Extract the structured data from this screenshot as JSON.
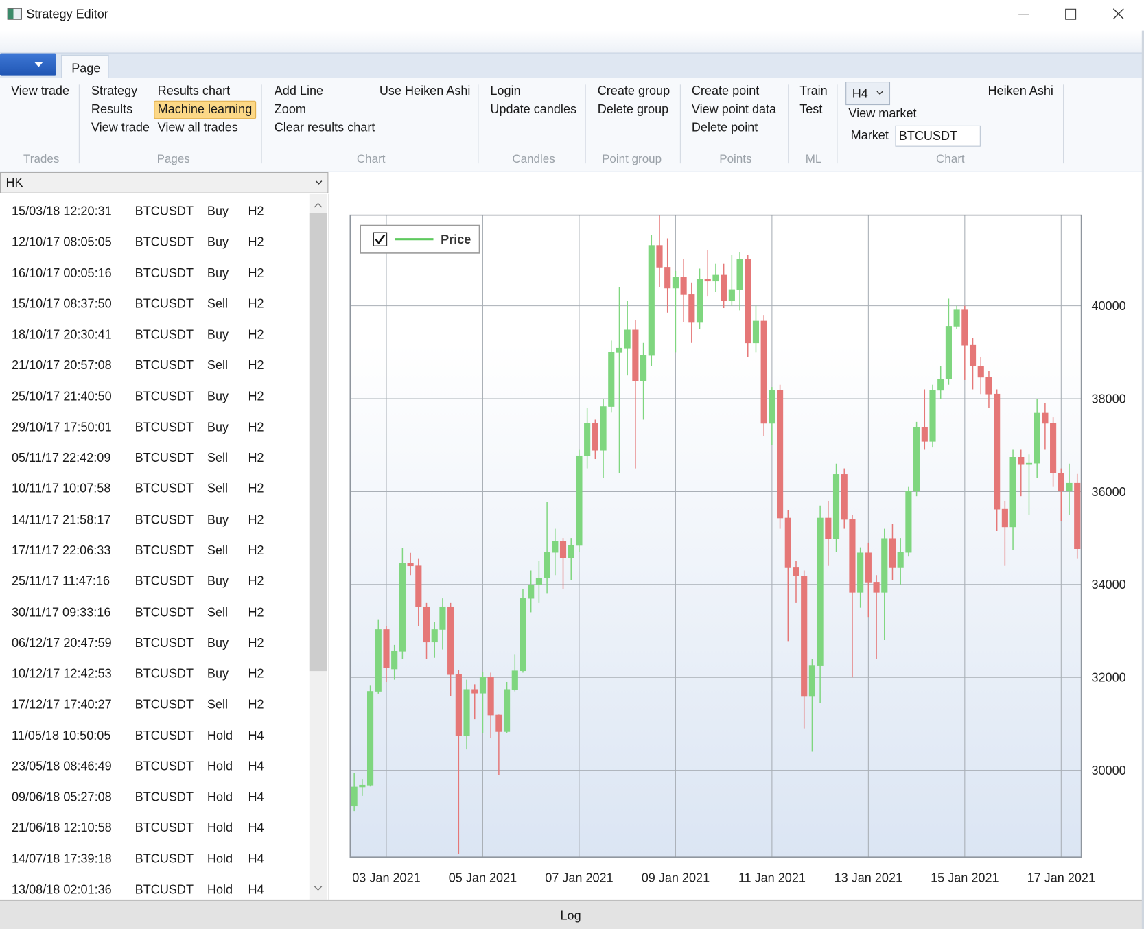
{
  "window": {
    "title": "Strategy Editor"
  },
  "ribbon": {
    "tab": "Page",
    "groups": [
      {
        "label": "Trades",
        "items": [
          "View trade"
        ]
      },
      {
        "label": "Pages",
        "items": [
          "Strategy",
          "Results",
          "View trade",
          "Results chart",
          "Machine learning",
          "View all trades"
        ]
      },
      {
        "label": "Chart",
        "items": [
          "Add Line",
          "Zoom",
          "Clear results chart",
          "Use Heiken Ashi"
        ]
      },
      {
        "label": "Candles",
        "items": [
          "Login",
          "Update candles"
        ]
      },
      {
        "label": "Point group",
        "items": [
          "Create group",
          "Delete group"
        ]
      },
      {
        "label": "Points",
        "items": [
          "Create point",
          "View point data",
          "Delete point"
        ]
      },
      {
        "label": "ML",
        "items": [
          "Train",
          "Test"
        ]
      },
      {
        "label": "Chart",
        "timeframe": "H4",
        "items": [
          "View market",
          "Heiken Ashi"
        ],
        "market_label": "Market",
        "market": "BTCUSDT"
      }
    ]
  },
  "trades": {
    "filter": "HK",
    "rows": [
      [
        "15/03/18 12:20:31",
        "BTCUSDT",
        "Buy",
        "H2"
      ],
      [
        "12/10/17 08:05:05",
        "BTCUSDT",
        "Buy",
        "H2"
      ],
      [
        "16/10/17 00:05:16",
        "BTCUSDT",
        "Buy",
        "H2"
      ],
      [
        "15/10/17 08:37:50",
        "BTCUSDT",
        "Sell",
        "H2"
      ],
      [
        "18/10/17 20:30:41",
        "BTCUSDT",
        "Buy",
        "H2"
      ],
      [
        "21/10/17 20:57:08",
        "BTCUSDT",
        "Sell",
        "H2"
      ],
      [
        "25/10/17 21:40:50",
        "BTCUSDT",
        "Buy",
        "H2"
      ],
      [
        "29/10/17 17:50:01",
        "BTCUSDT",
        "Buy",
        "H2"
      ],
      [
        "05/11/17 22:42:09",
        "BTCUSDT",
        "Sell",
        "H2"
      ],
      [
        "10/11/17 10:07:58",
        "BTCUSDT",
        "Sell",
        "H2"
      ],
      [
        "14/11/17 21:58:17",
        "BTCUSDT",
        "Buy",
        "H2"
      ],
      [
        "17/11/17 22:06:33",
        "BTCUSDT",
        "Sell",
        "H2"
      ],
      [
        "25/11/17 11:47:16",
        "BTCUSDT",
        "Buy",
        "H2"
      ],
      [
        "30/11/17 09:33:16",
        "BTCUSDT",
        "Sell",
        "H2"
      ],
      [
        "06/12/17 20:47:59",
        "BTCUSDT",
        "Buy",
        "H2"
      ],
      [
        "10/12/17 12:42:53",
        "BTCUSDT",
        "Buy",
        "H2"
      ],
      [
        "17/12/17 17:40:27",
        "BTCUSDT",
        "Sell",
        "H2"
      ],
      [
        "11/05/18 10:50:05",
        "BTCUSDT",
        "Hold",
        "H4"
      ],
      [
        "23/05/18 08:46:49",
        "BTCUSDT",
        "Hold",
        "H4"
      ],
      [
        "09/06/18 05:27:08",
        "BTCUSDT",
        "Hold",
        "H4"
      ],
      [
        "21/06/18 12:10:58",
        "BTCUSDT",
        "Hold",
        "H4"
      ],
      [
        "14/07/18 17:39:18",
        "BTCUSDT",
        "Hold",
        "H4"
      ],
      [
        "13/08/18 02:01:36",
        "BTCUSDT",
        "Hold",
        "H4"
      ]
    ]
  },
  "chart": {
    "type": "candlestick",
    "legend": "top-left",
    "y_axis": "right",
    "grid": true,
    "categories": [
      null,
      null,
      null,
      null,
      "03 Jan 2021",
      null,
      null,
      null,
      null,
      null,
      null,
      null,
      null,
      null,
      null,
      null,
      "05 Jan 2021",
      null,
      null,
      null,
      null,
      null,
      null,
      null,
      null,
      null,
      null,
      null,
      "07 Jan 2021",
      null,
      null,
      null,
      null,
      null,
      null,
      null,
      null,
      null,
      null,
      null,
      "09 Jan 2021",
      null,
      null,
      null,
      null,
      null,
      null,
      null,
      null,
      null,
      null,
      null,
      "11 Jan 2021",
      null,
      null,
      null,
      null,
      null,
      null,
      null,
      null,
      null,
      null,
      null,
      "13 Jan 2021",
      null,
      null,
      null,
      null,
      null,
      null,
      null,
      null,
      null,
      null,
      null,
      "15 Jan 2021",
      null,
      null,
      null,
      null,
      null,
      null,
      null,
      null,
      null,
      null,
      null,
      "17 Jan 2021",
      null,
      null
    ],
    "ylim": [
      28130,
      41950
    ],
    "yticks": [
      30000,
      32000,
      34000,
      36000,
      38000,
      40000
    ],
    "series": [
      {
        "name": "Price",
        "color": "#5ec95e",
        "up_color": "#7fd67f",
        "down_color": "#e57777",
        "open": [
          29230,
          29640,
          29680,
          31700,
          33030,
          32180,
          32560,
          34460,
          34400,
          33520,
          32760,
          33030,
          33520,
          32060,
          30750,
          31740,
          31660,
          32000,
          31190,
          30830,
          31740,
          32140,
          33700,
          33990,
          34140,
          34690,
          34930,
          34570,
          34840,
          36770,
          37470,
          36890,
          37830,
          39000,
          39090,
          39480,
          38380,
          38930,
          41300,
          40830,
          40380,
          40610,
          40240,
          39640,
          40580,
          40530,
          40660,
          40110,
          40350,
          41000,
          39200,
          39670,
          37470,
          38180,
          35430,
          34360,
          34180,
          31590,
          32260,
          35430,
          34990,
          36370,
          35400,
          33830,
          34680,
          34050,
          33830,
          34990,
          34360,
          34690,
          36010,
          37390,
          37080,
          38180,
          38420,
          39560,
          39910,
          39150,
          38700,
          38460,
          38100,
          35620,
          35240,
          36740,
          36580,
          36610,
          37690,
          37470,
          36400,
          36010,
          36180
        ],
        "high": [
          29940,
          29800,
          31820,
          33250,
          33100,
          32700,
          34790,
          34680,
          34550,
          33600,
          33200,
          33700,
          33600,
          32150,
          31950,
          31850,
          32120,
          32100,
          31200,
          31900,
          32500,
          33900,
          34300,
          34500,
          35780,
          35200,
          35000,
          35000,
          36900,
          37800,
          37550,
          38000,
          39250,
          40400,
          40100,
          39700,
          39200,
          41520,
          41950,
          41450,
          40750,
          41000,
          40500,
          40800,
          41200,
          40900,
          40900,
          41100,
          41150,
          41100,
          40000,
          39800,
          38250,
          38300,
          35600,
          34500,
          34300,
          32400,
          35700,
          35800,
          36600,
          36500,
          35500,
          34800,
          34900,
          34200,
          35200,
          35300,
          35000,
          36100,
          37500,
          38200,
          38300,
          38700,
          40150,
          40000,
          40000,
          39300,
          38900,
          38600,
          38200,
          35800,
          36900,
          36900,
          36800,
          38000,
          37900,
          37600,
          36500,
          36600,
          36380
        ],
        "low": [
          29120,
          29450,
          29650,
          31650,
          31900,
          31950,
          32400,
          34200,
          33100,
          32400,
          32420,
          32600,
          31600,
          28200,
          30450,
          31100,
          30800,
          30700,
          29900,
          30800,
          31700,
          32100,
          33400,
          33600,
          33800,
          34200,
          33900,
          34100,
          34700,
          36500,
          36700,
          36300,
          37700,
          36400,
          38500,
          36500,
          37550,
          38700,
          40400,
          39850,
          39000,
          39650,
          39200,
          39500,
          40200,
          40300,
          39950,
          40000,
          39900,
          38900,
          39000,
          37200,
          37000,
          35200,
          32780,
          33600,
          30900,
          30400,
          31450,
          34400,
          34700,
          35200,
          32000,
          33500,
          33300,
          32400,
          32800,
          34100,
          34000,
          34600,
          35900,
          36900,
          36950,
          38000,
          38300,
          39500,
          38400,
          38200,
          38100,
          37800,
          35150,
          34400,
          34750,
          35900,
          35500,
          36300,
          36900,
          36100,
          35370,
          35500,
          34550
        ],
        "close": [
          29640,
          29680,
          31700,
          33030,
          32200,
          32560,
          34460,
          34400,
          33520,
          32760,
          33030,
          33520,
          32060,
          30750,
          31740,
          31660,
          32000,
          31190,
          30830,
          31740,
          32140,
          33700,
          33990,
          34140,
          34690,
          34930,
          34570,
          34840,
          36770,
          37470,
          36890,
          37830,
          39000,
          39090,
          39480,
          38380,
          38930,
          41300,
          40830,
          40380,
          40610,
          40240,
          39640,
          40580,
          40530,
          40660,
          40110,
          40350,
          41000,
          39200,
          39670,
          37470,
          38180,
          35430,
          34360,
          34180,
          31590,
          32260,
          35430,
          34990,
          36370,
          35400,
          33830,
          34680,
          34050,
          33830,
          34990,
          34360,
          34690,
          36010,
          37390,
          37080,
          38180,
          38420,
          39560,
          39910,
          39150,
          38700,
          38460,
          38100,
          35620,
          35240,
          36740,
          36580,
          36610,
          37690,
          37470,
          36400,
          36010,
          36180,
          34770
        ]
      }
    ]
  },
  "log": "Log"
}
